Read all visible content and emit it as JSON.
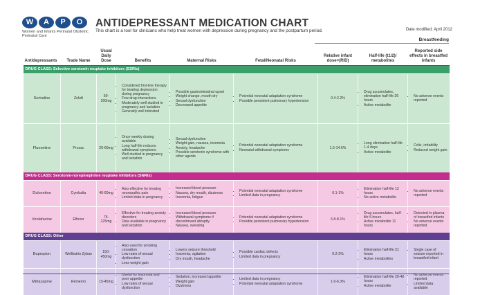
{
  "logo": {
    "letters": [
      "W",
      "A",
      "P",
      "O"
    ],
    "sub": "Women and Infants Perinatal Obstetric Perinatal Care"
  },
  "header": {
    "title": "ANTIDEPRESSANT MEDICATION CHART",
    "subtitle": "This chart is a tool for clinicians who help treat women with depression during pregnancy and the postpartum period.",
    "date": "Date modified: April 2012",
    "breastfeeding": "Breastfeeding"
  },
  "columns": {
    "antidepressants": "Antidepressants",
    "trade": "Trade Name",
    "dose": "Usual Daily Dose",
    "benefits": "Benefits",
    "maternal": "Maternal Risks",
    "fetal": "Fetal/Neonatal Risks",
    "rid": "Relative infant dose=(RID)",
    "halflife": "Half-life (t1/2)/ metabolites",
    "reported": "Reported side effects in breastfed infants"
  },
  "classes": {
    "ssri": "DRUG CLASS: Selective serotonin reuptake inhibitors (SSRIs)",
    "snri": "DRUG CLASS: Serotonin-norepinephrine reuptake inhibitors (SNRIs)",
    "other": "DRUG CLASS: Other"
  },
  "rows": [
    {
      "drug": "Sertraline",
      "trade": "Zoloft",
      "dose": "50-200mg",
      "benefits": [
        "Considered first-line therapy for treating depression during pregnancy",
        "Few drug interactions",
        "Moderately well studied in pregnancy and lactation",
        "Generally well tolerated"
      ],
      "maternal": [
        "Possible gastrointestinal upset",
        "Weight change, mouth dry",
        "Sexual dysfunction",
        "Decreased appetite"
      ],
      "fetal": [
        "Potential neonatal adaptation syndrome",
        "Possible persistent pulmonary hypertension"
      ],
      "rid": "0.4-2.2%",
      "halflife": [
        "Drug accumulates, elimination half-life 26 hours",
        "Active metabolite"
      ],
      "reported": [
        "No adverse events reported"
      ]
    },
    {
      "drug": "Fluoxetine",
      "trade": "Prozac",
      "dose": "20-60mg",
      "benefits": [
        "Once weekly dosing available",
        "Long half-life reduces withdrawal symptoms",
        "Well studied in pregnancy and lactation"
      ],
      "maternal": [
        "Sexual dysfunction",
        "Weight gain, nausea, insomnia",
        "Anxiety, headache",
        "Possible serotonin syndrome with other agents"
      ],
      "fetal": [
        "Potential neonatal adaptation syndrome",
        "Neonatal withdrawal symptoms"
      ],
      "rid": "1.6-14.6%",
      "halflife": [
        "Long elimination half-life 1-4 days",
        "Active metabolite"
      ],
      "reported": [
        "Colic, irritability",
        "Reduced weight gain"
      ]
    },
    {
      "drug": "Duloxetine",
      "trade": "Cymbalta",
      "dose": "40-60mg",
      "benefits": [
        "Also effective for treating neuropathic pain",
        "Limited data in pregnancy"
      ],
      "maternal": [
        "Increased blood pressure",
        "Nausea, dry mouth, dizziness",
        "Insomnia, fatigue"
      ],
      "fetal": [
        "Potential neonatal adaptation syndrome",
        "Limited data in pregnancy"
      ],
      "rid": "0.1-1%",
      "halflife": [
        "Elimination half-life 12 hours",
        "No active metabolite"
      ],
      "reported": [
        "No adverse events reported"
      ]
    },
    {
      "drug": "Venlafaxine",
      "trade": "Effexor",
      "dose": "75-225mg",
      "benefits": [
        "Effective for treating anxiety disorders",
        "Data available in pregnancy and lactation"
      ],
      "maternal": [
        "Increased blood pressure",
        "Withdrawal symptoms if discontinued abruptly",
        "Nausea, sweating"
      ],
      "fetal": [
        "Potential neonatal adaptation syndrome",
        "Possible persistent pulmonary hypertension"
      ],
      "rid": "6.8-8.1%",
      "halflife": [
        "Drug accumulates, half-life 5 hours",
        "Active metabolite 11 hours"
      ],
      "reported": [
        "Detected in plasma of breastfed infants",
        "No adverse events reported"
      ]
    },
    {
      "drug": "Bupropion",
      "trade": "Wellbutrin Zyban",
      "dose": "150-450mg",
      "benefits": [
        "Also used for smoking cessation",
        "Low rates of sexual dysfunction",
        "Less weight gain"
      ],
      "maternal": [
        "Lowers seizure threshold",
        "Insomnia, agitation",
        "Dry mouth, headache"
      ],
      "fetal": [
        "Possible cardiac defects",
        "Limited data in pregnancy"
      ],
      "rid": "0.2-2%",
      "halflife": [
        "Elimination half-life 21 hours",
        "Active metabolites"
      ],
      "reported": [
        "Single case of seizure reported in breastfed infant"
      ]
    },
    {
      "drug": "Mirtazapine",
      "trade": "Remeron",
      "dose": "15-45mg",
      "benefits": [
        "Useful for insomnia and poor appetite",
        "Low rates of sexual dysfunction"
      ],
      "maternal": [
        "Sedation, increased appetite",
        "Weight gain",
        "Dizziness"
      ],
      "fetal": [
        "Limited data in pregnancy",
        "Potential neonatal adaptation syndrome"
      ],
      "rid": "1.6-6.3%",
      "halflife": [
        "Elimination half-life 20-40 hours",
        "Active metabolite"
      ],
      "reported": [
        "No adverse events reported",
        "Limited data available"
      ]
    }
  ]
}
